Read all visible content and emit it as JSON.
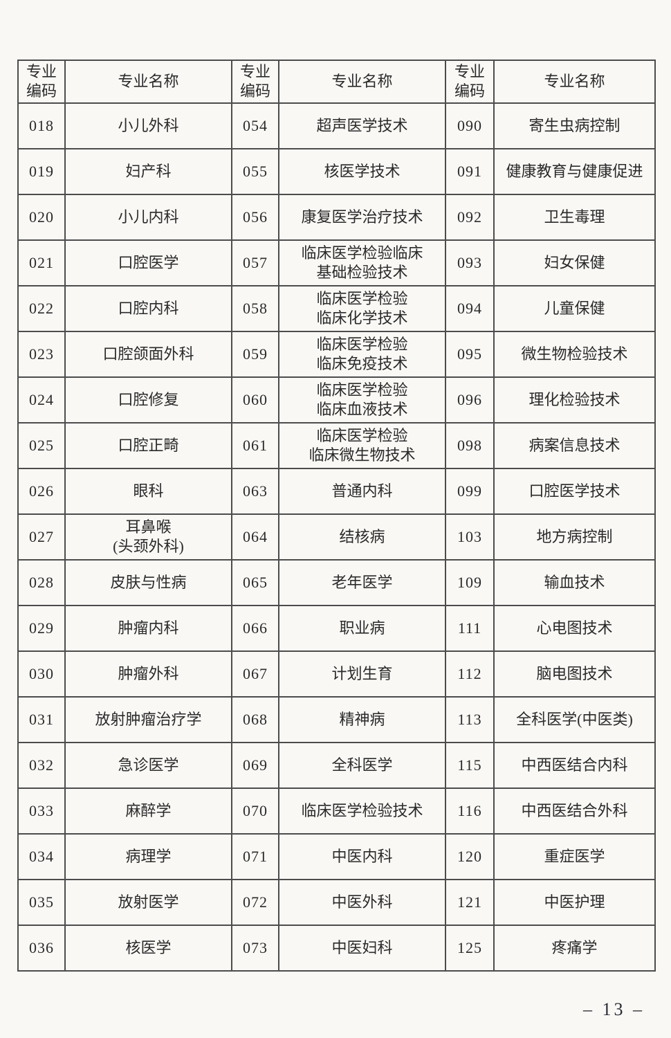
{
  "page": {
    "number_label": "– 13 –"
  },
  "table": {
    "header": {
      "code_label": "专业\n编码",
      "name_label": "专业名称"
    },
    "rows": [
      [
        "018",
        "小儿外科",
        "054",
        "超声医学技术",
        "090",
        "寄生虫病控制"
      ],
      [
        "019",
        "妇产科",
        "055",
        "核医学技术",
        "091",
        "健康教育与健康促进"
      ],
      [
        "020",
        "小儿内科",
        "056",
        "康复医学治疗技术",
        "092",
        "卫生毒理"
      ],
      [
        "021",
        "口腔医学",
        "057",
        "临床医学检验临床\n基础检验技术",
        "093",
        "妇女保健"
      ],
      [
        "022",
        "口腔内科",
        "058",
        "临床医学检验\n临床化学技术",
        "094",
        "儿童保健"
      ],
      [
        "023",
        "口腔颌面外科",
        "059",
        "临床医学检验\n临床免疫技术",
        "095",
        "微生物检验技术"
      ],
      [
        "024",
        "口腔修复",
        "060",
        "临床医学检验\n临床血液技术",
        "096",
        "理化检验技术"
      ],
      [
        "025",
        "口腔正畸",
        "061",
        "临床医学检验\n临床微生物技术",
        "098",
        "病案信息技术"
      ],
      [
        "026",
        "眼科",
        "063",
        "普通内科",
        "099",
        "口腔医学技术"
      ],
      [
        "027",
        "耳鼻喉\n(头颈外科)",
        "064",
        "结核病",
        "103",
        "地方病控制"
      ],
      [
        "028",
        "皮肤与性病",
        "065",
        "老年医学",
        "109",
        "输血技术"
      ],
      [
        "029",
        "肿瘤内科",
        "066",
        "职业病",
        "111",
        "心电图技术"
      ],
      [
        "030",
        "肿瘤外科",
        "067",
        "计划生育",
        "112",
        "脑电图技术"
      ],
      [
        "031",
        "放射肿瘤治疗学",
        "068",
        "精神病",
        "113",
        "全科医学(中医类)"
      ],
      [
        "032",
        "急诊医学",
        "069",
        "全科医学",
        "115",
        "中西医结合内科"
      ],
      [
        "033",
        "麻醉学",
        "070",
        "临床医学检验技术",
        "116",
        "中西医结合外科"
      ],
      [
        "034",
        "病理学",
        "071",
        "中医内科",
        "120",
        "重症医学"
      ],
      [
        "035",
        "放射医学",
        "072",
        "中医外科",
        "121",
        "中医护理"
      ],
      [
        "036",
        "核医学",
        "073",
        "中医妇科",
        "125",
        "疼痛学"
      ]
    ]
  }
}
